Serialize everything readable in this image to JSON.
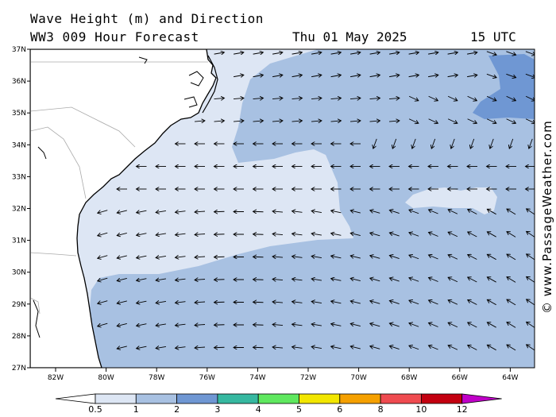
{
  "header": {
    "title_line1": "Wave Height (m) and Direction",
    "title_line2": "WW3 009 Hour Forecast",
    "date": "Thu 01 May 2025",
    "time": "15 UTC"
  },
  "credit": "© www.PassageWeather.com",
  "axes": {
    "lon_labels": [
      "82W",
      "80W",
      "78W",
      "76W",
      "74W",
      "72W",
      "70W",
      "68W",
      "66W",
      "64W"
    ],
    "lat_labels": [
      "37N",
      "36N",
      "35N",
      "34N",
      "33N",
      "32N",
      "31N",
      "30N",
      "29N",
      "28N",
      "27N"
    ]
  },
  "colorbar": {
    "labels": [
      "0.5",
      "1",
      "2",
      "3",
      "4",
      "5",
      "6",
      "8",
      "10",
      "12"
    ],
    "colors": [
      "#dde6f4",
      "#a8c1e2",
      "#6f97d3",
      "#36b8a0",
      "#5fe85f",
      "#f2e600",
      "#f5a000",
      "#ef4b50",
      "#c30010",
      "#c000c8"
    ]
  },
  "colors": {
    "land": "#ffffff",
    "band_lt1": "#dde6f4",
    "band_1_2": "#a8c1e2",
    "band_2_3": "#6f97d3"
  }
}
